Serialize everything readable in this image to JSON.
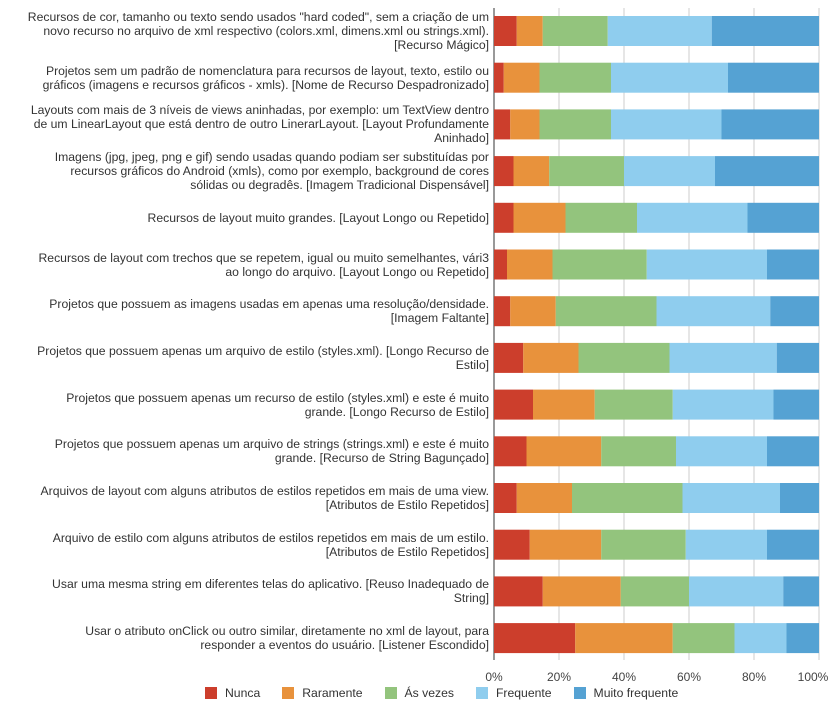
{
  "chart_data": {
    "type": "bar",
    "orientation": "horizontal",
    "stacked": true,
    "percent": true,
    "categories": [
      "Recursos de cor, tamanho ou texto sendo usados \"hard coded\", sem a criação de um novo recurso no arquivo de xml respectivo (colors.xml, dimens.xml ou strings.xml). [Recurso Mágico]",
      "Projetos sem um padrão de nomenclatura para recursos de layout, texto, estilo ou gráficos (imagens e recursos gráficos - xmls). [Nome de Recurso Despadronizado]",
      "Layouts com mais de 3 níveis de views aninhadas, por exemplo: um TextView dentro de um LinearLayout que está dentro de outro LinerarLayout. [Layout Profundamente Aninhado]",
      "Imagens (jpg, jpeg, png e gif) sendo usadas quando podiam ser substituídas por recursos gráficos do Android (xmls), como por exemplo, background de cores sólidas ou degradês. [Imagem Tradicional Dispensável]",
      "Recursos de layout muito grandes. [Layout Longo ou Repetido]",
      "Recursos de layout com trechos que se repetem, igual ou muito semelhantes, vári3 ao longo do arquivo. [Layout Longo ou Repetido]",
      "Projetos que possuem as imagens usadas em apenas uma resolução/densidade. [Imagem Faltante]",
      "Projetos que possuem apenas um arquivo de estilo (styles.xml). [Longo Recurso de Estilo]",
      "Projetos que possuem apenas um recurso de estilo (styles.xml) e este é muito grande. [Longo Recurso de Estilo]",
      "Projetos que possuem apenas um arquivo de strings (strings.xml) e este é muito grande. [Recurso de String Bagunçado]",
      "Arquivos de layout com alguns atributos de estilos repetidos em mais de uma view. [Atributos de Estilo Repetidos]",
      "Arquivo de estilo com alguns atributos de estilos repetidos em mais de um estilo. [Atributos de Estilo Repetidos]",
      "Usar uma mesma string em diferentes telas do aplicativo. [Reuso Inadequado de String]",
      "Usar o atributo onClick ou outro similar, diretamente no xml de layout, para responder a eventos do usuário. [Listener Escondido]"
    ],
    "category_lines": [
      [
        "Recursos de cor, tamanho ou texto sendo usados \"hard coded\", sem a criação de um",
        "novo recurso no arquivo de xml respectivo (colors.xml, dimens.xml ou strings.xml).",
        "[Recurso Mágico]"
      ],
      [
        "Projetos sem um padrão de nomenclatura para recursos de layout, texto, estilo ou",
        "gráficos (imagens e recursos gráficos - xmls). [Nome de Recurso Despadronizado]"
      ],
      [
        "Layouts com mais de 3 níveis de views aninhadas, por exemplo: um TextView dentro",
        "de um LinearLayout que está dentro de outro LinerarLayout. [Layout Profundamente",
        "Aninhado]"
      ],
      [
        "Imagens (jpg, jpeg, png e gif) sendo usadas quando podiam ser substituídas por",
        "recursos gráficos do Android (xmls), como por exemplo, background de cores",
        "sólidas ou degradês. [Imagem Tradicional Dispensável]"
      ],
      [
        "Recursos de layout muito grandes. [Layout Longo ou Repetido]"
      ],
      [
        "Recursos de layout com trechos que se repetem, igual ou muito semelhantes, vári3",
        "ao longo do arquivo. [Layout Longo ou Repetido]"
      ],
      [
        "Projetos que possuem as imagens usadas em apenas uma resolução/densidade.",
        "[Imagem Faltante]"
      ],
      [
        "Projetos que possuem apenas um arquivo de estilo (styles.xml). [Longo Recurso de",
        "Estilo]"
      ],
      [
        "Projetos que possuem apenas um recurso de estilo (styles.xml) e este é muito",
        "grande. [Longo Recurso de Estilo]"
      ],
      [
        "Projetos que possuem apenas um arquivo de strings (strings.xml) e este é muito",
        "grande. [Recurso de String Bagunçado]"
      ],
      [
        "Arquivos de layout com alguns atributos de estilos repetidos em mais de uma view.",
        "[Atributos de Estilo Repetidos]"
      ],
      [
        "Arquivo de estilo com alguns atributos de estilos repetidos em mais de um estilo.",
        "[Atributos de Estilo Repetidos]"
      ],
      [
        "Usar uma mesma string em diferentes telas do aplicativo. [Reuso Inadequado de",
        "String]"
      ],
      [
        "Usar o atributo onClick ou outro similar, diretamente no xml de layout, para",
        "responder a eventos do usuário. [Listener Escondido]"
      ]
    ],
    "series": [
      {
        "name": "Nunca",
        "color": "#cc3e2c",
        "values": [
          7,
          3,
          5,
          6,
          6,
          4,
          5,
          9,
          12,
          10,
          7,
          11,
          15,
          25
        ]
      },
      {
        "name": "Raramente",
        "color": "#e8923c",
        "values": [
          8,
          11,
          9,
          11,
          16,
          14,
          14,
          17,
          19,
          23,
          17,
          22,
          24,
          30
        ]
      },
      {
        "name": "Ás vezes",
        "color": "#93c47d",
        "values": [
          20,
          22,
          22,
          23,
          22,
          29,
          31,
          28,
          24,
          23,
          34,
          26,
          21,
          19
        ]
      },
      {
        "name": "Frequente",
        "color": "#8fcdee",
        "values": [
          32,
          36,
          34,
          28,
          34,
          37,
          35,
          33,
          31,
          28,
          30,
          25,
          29,
          16
        ]
      },
      {
        "name": "Muito frequente",
        "color": "#55a2d3",
        "values": [
          33,
          28,
          30,
          32,
          22,
          16,
          15,
          13,
          14,
          16,
          12,
          16,
          11,
          10
        ]
      }
    ],
    "xlim": [
      0,
      100
    ],
    "xticks": [
      "0%",
      "20%",
      "40%",
      "60%",
      "80%",
      "100%"
    ],
    "grid": true,
    "legend_position": "bottom",
    "title": "",
    "xlabel": "",
    "ylabel": ""
  }
}
